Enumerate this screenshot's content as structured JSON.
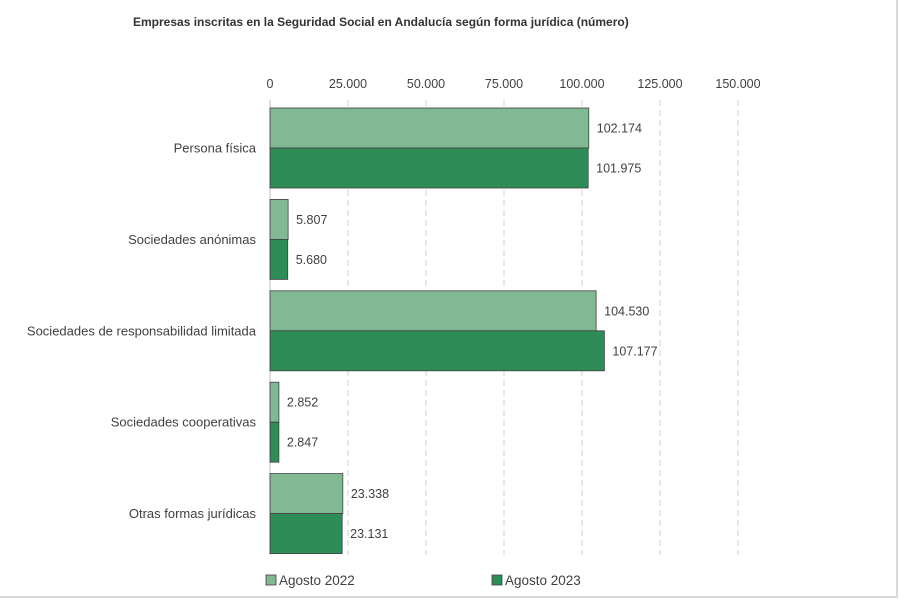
{
  "chart_data": {
    "type": "bar",
    "orientation": "horizontal",
    "title": "Empresas inscritas en la Seguridad Social en Andalucía según forma jurídica (número)",
    "categories": [
      "Persona física",
      "Sociedades anónimas",
      "Sociedades de responsabilidad limitada",
      "Sociedades cooperativas",
      "Otras formas jurídicas"
    ],
    "series": [
      {
        "name": "Agosto 2022",
        "color": "#80b994",
        "values": [
          102174,
          5807,
          104530,
          2852,
          23338
        ],
        "labels": [
          "102.174",
          "5.807",
          "104.530",
          "2.852",
          "23.338"
        ]
      },
      {
        "name": "Agosto 2023",
        "color": "#2e8c56",
        "values": [
          101975,
          5680,
          107177,
          2847,
          23131
        ],
        "labels": [
          "101.975",
          "5.680",
          "107.177",
          "2.847",
          "23.131"
        ]
      }
    ],
    "xlim": [
      0,
      150000
    ],
    "ticks": [
      0,
      25000,
      50000,
      75000,
      100000,
      125000,
      150000
    ],
    "tick_labels": [
      "0",
      "25.000",
      "50.000",
      "75.000",
      "100.000",
      "125.000",
      "150.000"
    ],
    "axis_position": "top",
    "grid": "dashed vertical",
    "legend": "bottom"
  }
}
